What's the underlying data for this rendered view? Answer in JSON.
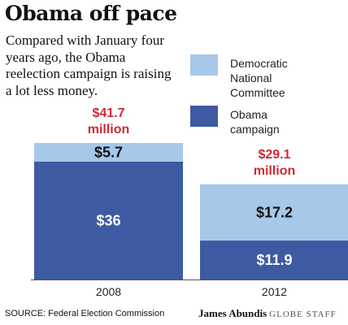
{
  "header": {
    "title": "Obama off pace",
    "subtitle": "Compared with January four years ago, the Obama reelection campaign is raising a lot less money."
  },
  "legend": {
    "items": [
      {
        "label": "Democratic National Committee",
        "color": "#a7c8e8"
      },
      {
        "label": "Obama campaign",
        "color": "#3d5aa3"
      }
    ]
  },
  "chart_data": {
    "type": "bar",
    "stacked": true,
    "categories": [
      "2008",
      "2012"
    ],
    "series": [
      {
        "name": "Obama campaign",
        "values": [
          36,
          11.9
        ],
        "labels": [
          "$36",
          "$11.9"
        ],
        "color": "#3d5aa3",
        "label_color": "#ffffff"
      },
      {
        "name": "Democratic National Committee",
        "values": [
          5.7,
          17.2
        ],
        "labels": [
          "$5.7",
          "$17.2"
        ],
        "color": "#a7c8e8",
        "label_color": "#111111"
      }
    ],
    "totals": [
      {
        "line1": "$41.7",
        "line2": "million"
      },
      {
        "line1": "$29.1",
        "line2": "million"
      }
    ],
    "total_color": "#cc2a36",
    "ylim": [
      0,
      41.7
    ],
    "grid": false
  },
  "footer": {
    "source": "SOURCE: Federal Election Commission",
    "author": "James Abundis",
    "staff": "GLOBE STAFF"
  }
}
